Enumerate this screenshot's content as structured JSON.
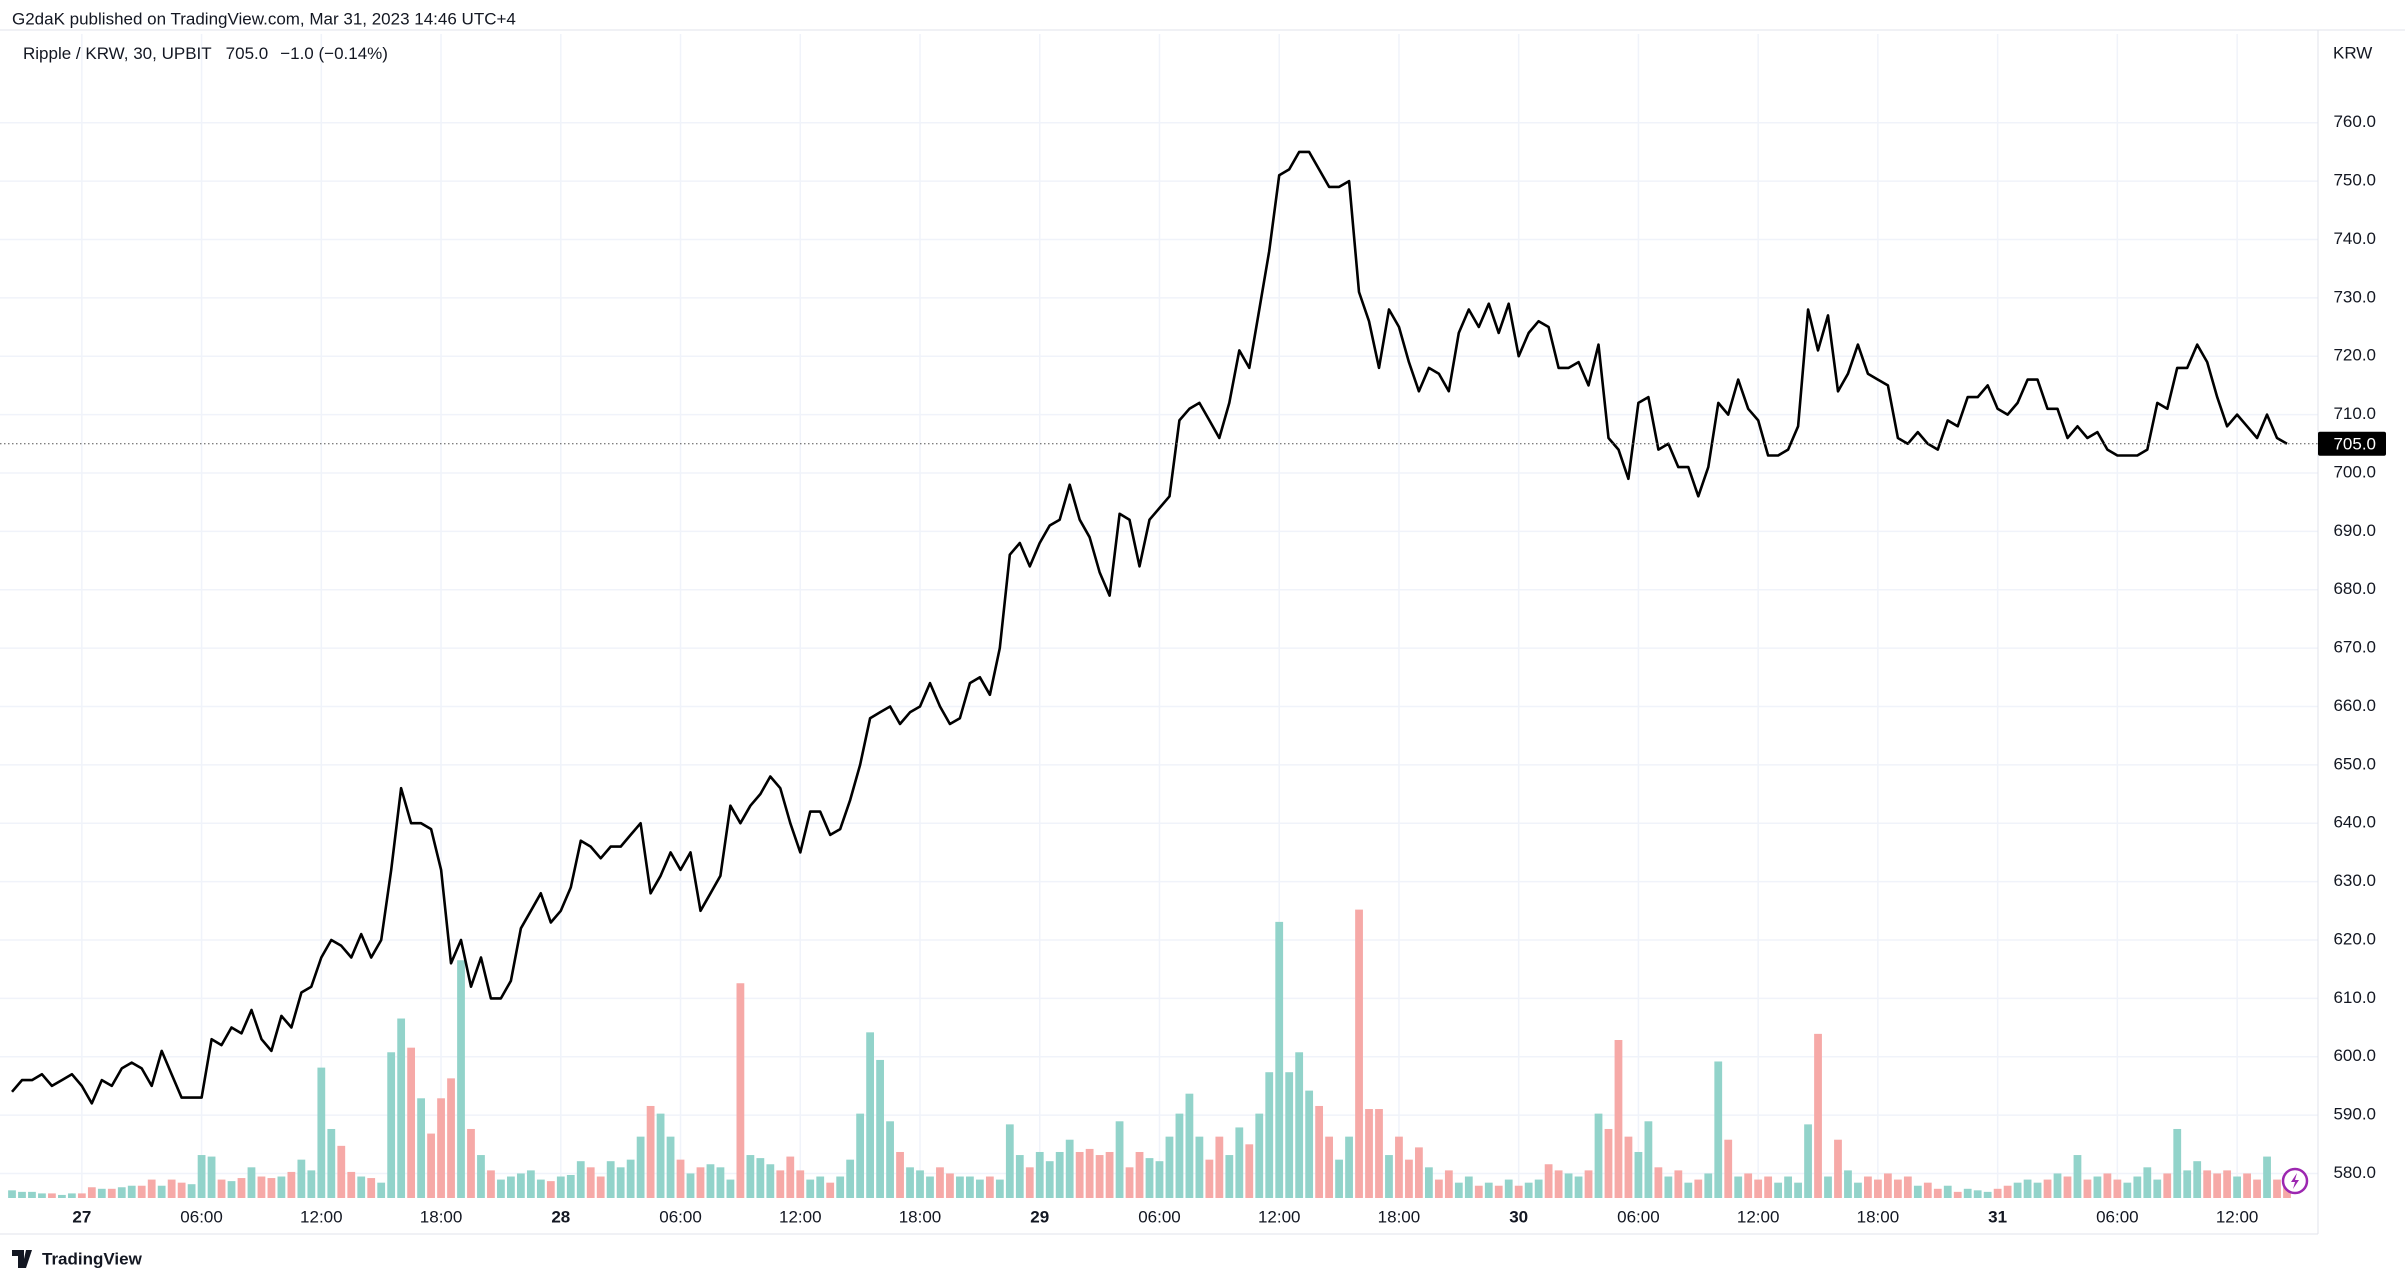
{
  "header": {
    "published": "G2daK published on TradingView.com, Mar 31, 2023 14:46 UTC+4",
    "footer": "TradingView"
  },
  "chart_data": {
    "type": "line",
    "title": "Ripple / KRW, 30, UPBIT",
    "legend_value": "705.0",
    "legend_change": "−1.0 (−0.14%)",
    "currency": "KRW",
    "last_label": "705.0",
    "color": "#000000",
    "grid": true,
    "categories": [
      null,
      null,
      null,
      null,
      null,
      null,
      null,
      "27",
      null,
      null,
      null,
      null,
      null,
      null,
      null,
      null,
      null,
      null,
      null,
      "06:00",
      null,
      null,
      null,
      null,
      null,
      null,
      null,
      null,
      null,
      null,
      null,
      "12:00",
      null,
      null,
      null,
      null,
      null,
      null,
      null,
      null,
      null,
      null,
      null,
      "18:00",
      null,
      null,
      null,
      null,
      null,
      null,
      null,
      null,
      null,
      null,
      null,
      "28",
      null,
      null,
      null,
      null,
      null,
      null,
      null,
      null,
      null,
      null,
      null,
      "06:00",
      null,
      null,
      null,
      null,
      null,
      null,
      null,
      null,
      null,
      null,
      null,
      "12:00",
      null,
      null,
      null,
      null,
      null,
      null,
      null,
      null,
      null,
      null,
      null,
      "18:00",
      null,
      null,
      null,
      null,
      null,
      null,
      null,
      null,
      null,
      null,
      null,
      "29",
      null,
      null,
      null,
      null,
      null,
      null,
      null,
      null,
      null,
      null,
      null,
      "06:00",
      null,
      null,
      null,
      null,
      null,
      null,
      null,
      null,
      null,
      null,
      null,
      "12:00",
      null,
      null,
      null,
      null,
      null,
      null,
      null,
      null,
      null,
      null,
      null,
      "18:00",
      null,
      null,
      null,
      null,
      null,
      null,
      null,
      null,
      null,
      null,
      null,
      "30",
      null,
      null,
      null,
      null,
      null,
      null,
      null,
      null,
      null,
      null,
      null,
      "06:00",
      null,
      null,
      null,
      null,
      null,
      null,
      null,
      null,
      null,
      null,
      null,
      "12:00",
      null,
      null,
      null,
      null,
      null,
      null,
      null,
      null,
      null,
      null,
      null,
      "18:00",
      null,
      null,
      null,
      null,
      null,
      null,
      null,
      null,
      null,
      null,
      null,
      "31",
      null,
      null,
      null,
      null,
      null,
      null,
      null,
      null,
      null,
      null,
      null,
      "06:00",
      null,
      null,
      null,
      null,
      null,
      null,
      null,
      null,
      null,
      null,
      null,
      "12:00",
      null,
      null,
      null,
      null,
      null
    ],
    "values": [
      594,
      596,
      596,
      597,
      595,
      596,
      597,
      595,
      592,
      596,
      595,
      598,
      599,
      598,
      595,
      601,
      597,
      593,
      593,
      593,
      603,
      602,
      605,
      604,
      608,
      603,
      601,
      607,
      605,
      611,
      612,
      617,
      620,
      619,
      617,
      621,
      617,
      620,
      632,
      646,
      640,
      640,
      639,
      632,
      616,
      620,
      612,
      617,
      610,
      610,
      613,
      622,
      625,
      628,
      623,
      625,
      629,
      637,
      636,
      634,
      636,
      636,
      638,
      640,
      628,
      631,
      635,
      632,
      635,
      625,
      628,
      631,
      643,
      640,
      643,
      645,
      648,
      646,
      640,
      635,
      642,
      642,
      638,
      639,
      644,
      650,
      658,
      659,
      660,
      657,
      659,
      660,
      664,
      660,
      657,
      658,
      664,
      665,
      662,
      670,
      686,
      688,
      684,
      688,
      691,
      692,
      698,
      692,
      689,
      683,
      679,
      693,
      692,
      684,
      692,
      694,
      696,
      709,
      711,
      712,
      709,
      706,
      712,
      721,
      718,
      728,
      738,
      751,
      752,
      755,
      755,
      752,
      749,
      749,
      750,
      731,
      726,
      718,
      728,
      725,
      719,
      714,
      718,
      717,
      714,
      724,
      728,
      725,
      729,
      724,
      729,
      720,
      724,
      726,
      725,
      718,
      718,
      719,
      715,
      722,
      706,
      704,
      699,
      712,
      713,
      704,
      705,
      701,
      701,
      696,
      701,
      712,
      710,
      716,
      711,
      709,
      703,
      703,
      704,
      708,
      728,
      721,
      727,
      714,
      717,
      722,
      717,
      716,
      715,
      706,
      705,
      707,
      705,
      704,
      709,
      708,
      713,
      713,
      715,
      711,
      710,
      712,
      716,
      716,
      711,
      711,
      706,
      708,
      706,
      707,
      704,
      703,
      703,
      703,
      704,
      712,
      711,
      718,
      718,
      722,
      719,
      713,
      708,
      710,
      708,
      706,
      710,
      706,
      705
    ],
    "volume": {
      "up_color": "#92d3ca",
      "down_color": "#f6a9a7",
      "values": [
        5,
        4,
        4,
        3,
        3,
        2,
        3,
        3,
        7,
        6,
        6,
        7,
        8,
        8,
        12,
        8,
        12,
        10,
        9,
        28,
        27,
        12,
        11,
        13,
        20,
        14,
        13,
        14,
        17,
        25,
        18,
        85,
        45,
        34,
        17,
        14,
        13,
        10,
        95,
        117,
        98,
        65,
        42,
        65,
        78,
        155,
        45,
        28,
        18,
        12,
        14,
        16,
        18,
        12,
        11,
        14,
        15,
        24,
        20,
        14,
        24,
        20,
        25,
        40,
        60,
        55,
        40,
        25,
        16,
        20,
        22,
        20,
        12,
        140,
        28,
        26,
        22,
        18,
        27,
        18,
        12,
        14,
        10,
        14,
        25,
        55,
        108,
        90,
        50,
        30,
        20,
        18,
        14,
        20,
        16,
        14,
        14,
        12,
        14,
        12,
        48,
        28,
        20,
        30,
        24,
        30,
        38,
        30,
        32,
        28,
        30,
        50,
        20,
        30,
        26,
        24,
        40,
        55,
        68,
        40,
        25,
        40,
        28,
        46,
        35,
        55,
        82,
        180,
        82,
        95,
        70,
        60,
        40,
        25,
        40,
        188,
        58,
        58,
        28,
        40,
        25,
        33,
        20,
        12,
        18,
        10,
        14,
        8,
        10,
        8,
        12,
        8,
        10,
        12,
        22,
        18,
        16,
        14,
        18,
        55,
        45,
        103,
        40,
        30,
        50,
        20,
        14,
        18,
        10,
        12,
        16,
        89,
        38,
        14,
        16,
        12,
        14,
        10,
        14,
        10,
        48,
        107,
        14,
        38,
        18,
        10,
        14,
        12,
        16,
        12,
        14,
        8,
        10,
        6,
        8,
        4,
        6,
        5,
        4,
        6,
        8,
        10,
        12,
        10,
        12,
        16,
        14,
        28,
        12,
        14,
        16,
        12,
        10,
        14,
        20,
        12,
        16,
        45,
        18,
        24,
        18,
        16,
        18,
        14,
        16,
        12,
        27,
        12,
        10
      ]
    },
    "ylim": [
      575.8,
      775.2
    ],
    "yticks": [
      {
        "value": 580,
        "label": "580.0"
      },
      {
        "value": 590,
        "label": "590.0"
      },
      {
        "value": 600,
        "label": "600.0"
      },
      {
        "value": 610,
        "label": "610.0"
      },
      {
        "value": 620,
        "label": "620.0"
      },
      {
        "value": 630,
        "label": "630.0"
      },
      {
        "value": 640,
        "label": "640.0"
      },
      {
        "value": 650,
        "label": "650.0"
      },
      {
        "value": 660,
        "label": "660.0"
      },
      {
        "value": 670,
        "label": "670.0"
      },
      {
        "value": 680,
        "label": "680.0"
      },
      {
        "value": 690,
        "label": "690.0"
      },
      {
        "value": 700,
        "label": "700.0"
      },
      {
        "value": 710,
        "label": "710.0"
      },
      {
        "value": 720,
        "label": "720.0"
      },
      {
        "value": 730,
        "label": "730.0"
      },
      {
        "value": 740,
        "label": "740.0"
      },
      {
        "value": 750,
        "label": "750.0"
      },
      {
        "value": 760,
        "label": "760.0"
      }
    ]
  }
}
